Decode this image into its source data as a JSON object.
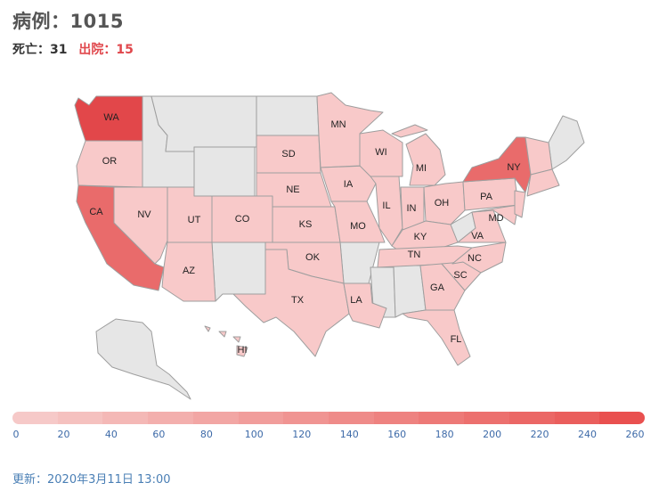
{
  "header": {
    "cases_label": "病例：",
    "cases": "1015",
    "deaths_label": "死亡：",
    "deaths": "31",
    "recovered_label": "出院：",
    "recovered": "15"
  },
  "legend": {
    "ticks": [
      "0",
      "20",
      "40",
      "60",
      "80",
      "100",
      "120",
      "140",
      "160",
      "180",
      "200",
      "220",
      "240",
      "260"
    ],
    "colors": [
      "#f6c9c8",
      "#f5c1bf",
      "#f4b8b6",
      "#f3afad",
      "#f2a6a4",
      "#f19d9b",
      "#f09492",
      "#ef8b89",
      "#ee8280",
      "#ed7977",
      "#ec706e",
      "#eb6765",
      "#ea5e5c",
      "#e9504f"
    ]
  },
  "footer": {
    "updated": "更新：2020年3月11日 13:00"
  },
  "colors": {
    "none": "#e6e6e6",
    "low": "#f8c9c9",
    "mid": "#f0a8a8",
    "high": "#e96b6b",
    "max": "#e2474a",
    "border": "#9e9e9e"
  },
  "states": [
    {
      "abbr": "WA",
      "level": "max"
    },
    {
      "abbr": "OR",
      "level": "low"
    },
    {
      "abbr": "CA",
      "level": "high"
    },
    {
      "abbr": "NV",
      "level": "low"
    },
    {
      "abbr": "UT",
      "level": "low"
    },
    {
      "abbr": "CO",
      "level": "low"
    },
    {
      "abbr": "AZ",
      "level": "low"
    },
    {
      "abbr": "SD",
      "level": "low"
    },
    {
      "abbr": "NE",
      "level": "low"
    },
    {
      "abbr": "KS",
      "level": "low"
    },
    {
      "abbr": "OK",
      "level": "low"
    },
    {
      "abbr": "TX",
      "level": "low"
    },
    {
      "abbr": "MN",
      "level": "low"
    },
    {
      "abbr": "IA",
      "level": "low"
    },
    {
      "abbr": "MO",
      "level": "low"
    },
    {
      "abbr": "LA",
      "level": "low"
    },
    {
      "abbr": "WI",
      "level": "low"
    },
    {
      "abbr": "IL",
      "level": "low"
    },
    {
      "abbr": "MI",
      "level": "low"
    },
    {
      "abbr": "IN",
      "level": "low"
    },
    {
      "abbr": "KY",
      "level": "low"
    },
    {
      "abbr": "TN",
      "level": "low"
    },
    {
      "abbr": "GA",
      "level": "low"
    },
    {
      "abbr": "FL",
      "level": "low"
    },
    {
      "abbr": "OH",
      "level": "low"
    },
    {
      "abbr": "PA",
      "level": "low"
    },
    {
      "abbr": "MD",
      "level": "low"
    },
    {
      "abbr": "VA",
      "level": "low"
    },
    {
      "abbr": "NC",
      "level": "low"
    },
    {
      "abbr": "SC",
      "level": "low"
    },
    {
      "abbr": "NY",
      "level": "high"
    },
    {
      "abbr": "HI",
      "level": "low"
    }
  ]
}
